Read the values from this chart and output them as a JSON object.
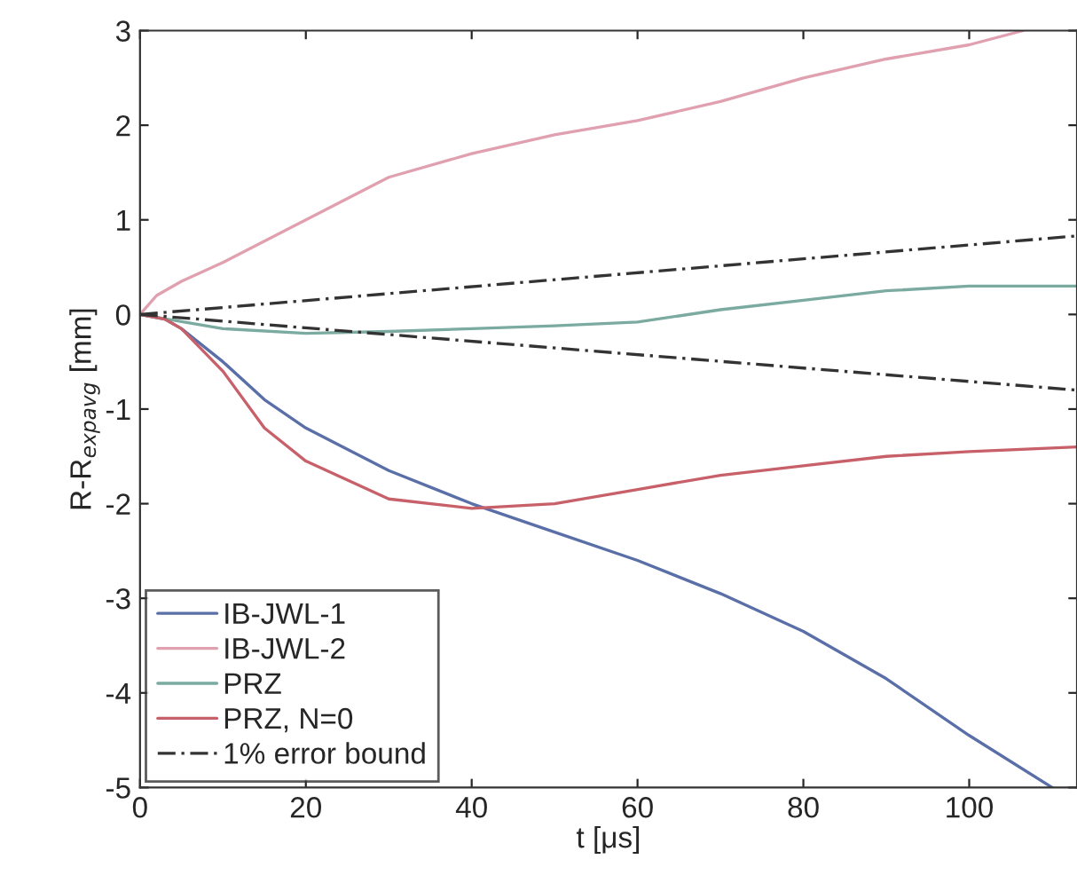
{
  "chart_data": {
    "type": "line",
    "xlabel": "t [μs]",
    "ylabel": "R-R$_{expavg}$ [mm]",
    "xlim": [
      0,
      113
    ],
    "ylim": [
      -5,
      3
    ],
    "xticks": [
      0,
      20,
      40,
      60,
      80,
      100
    ],
    "yticks": [
      -5,
      -4,
      -3,
      -2,
      -1,
      0,
      1,
      2,
      3
    ],
    "grid": false,
    "legend": "bottom left",
    "marker": "none",
    "series": [
      {
        "name": "IB-JWL-1",
        "color": "#5a6fa8",
        "x": [
          0,
          3,
          5,
          10,
          15,
          20,
          30,
          40,
          50,
          60,
          70,
          80,
          90,
          100,
          110
        ],
        "values": [
          0,
          -0.05,
          -0.15,
          -0.5,
          -0.9,
          -1.2,
          -1.65,
          -2.0,
          -2.3,
          -2.6,
          -2.95,
          -3.35,
          -3.85,
          -4.45,
          -5.0
        ]
      },
      {
        "name": "IB-JWL-2",
        "color": "#e0a0b0",
        "x": [
          0,
          2,
          5,
          10,
          20,
          30,
          40,
          50,
          60,
          70,
          80,
          90,
          100,
          106.5
        ],
        "values": [
          0,
          0.2,
          0.35,
          0.55,
          1.0,
          1.45,
          1.7,
          1.9,
          2.05,
          2.25,
          2.5,
          2.7,
          2.85,
          3.0
        ]
      },
      {
        "name": "PRZ",
        "color": "#7aaaa0",
        "x": [
          0,
          10,
          20,
          30,
          40,
          50,
          60,
          70,
          80,
          90,
          100,
          113
        ],
        "values": [
          0,
          -0.15,
          -0.2,
          -0.18,
          -0.15,
          -0.12,
          -0.08,
          0.05,
          0.15,
          0.25,
          0.3,
          0.3
        ]
      },
      {
        "name": "PRZ, N=0",
        "color": "#c8606a",
        "x": [
          0,
          3,
          5,
          10,
          15,
          20,
          30,
          40,
          50,
          60,
          70,
          80,
          90,
          100,
          113
        ],
        "values": [
          0,
          -0.05,
          -0.15,
          -0.6,
          -1.2,
          -1.55,
          -1.95,
          -2.05,
          -2.0,
          -1.85,
          -1.7,
          -1.6,
          -1.5,
          -1.45,
          -1.4
        ]
      },
      {
        "name": "1% error bound",
        "color": "#333333",
        "line_style": "dashed",
        "x": [
          0,
          113
        ],
        "values": [
          0,
          0.83
        ]
      },
      {
        "color": "#333333",
        "line_style": "dashed",
        "x": [
          0,
          113
        ],
        "values": [
          0,
          -0.8
        ]
      }
    ]
  }
}
